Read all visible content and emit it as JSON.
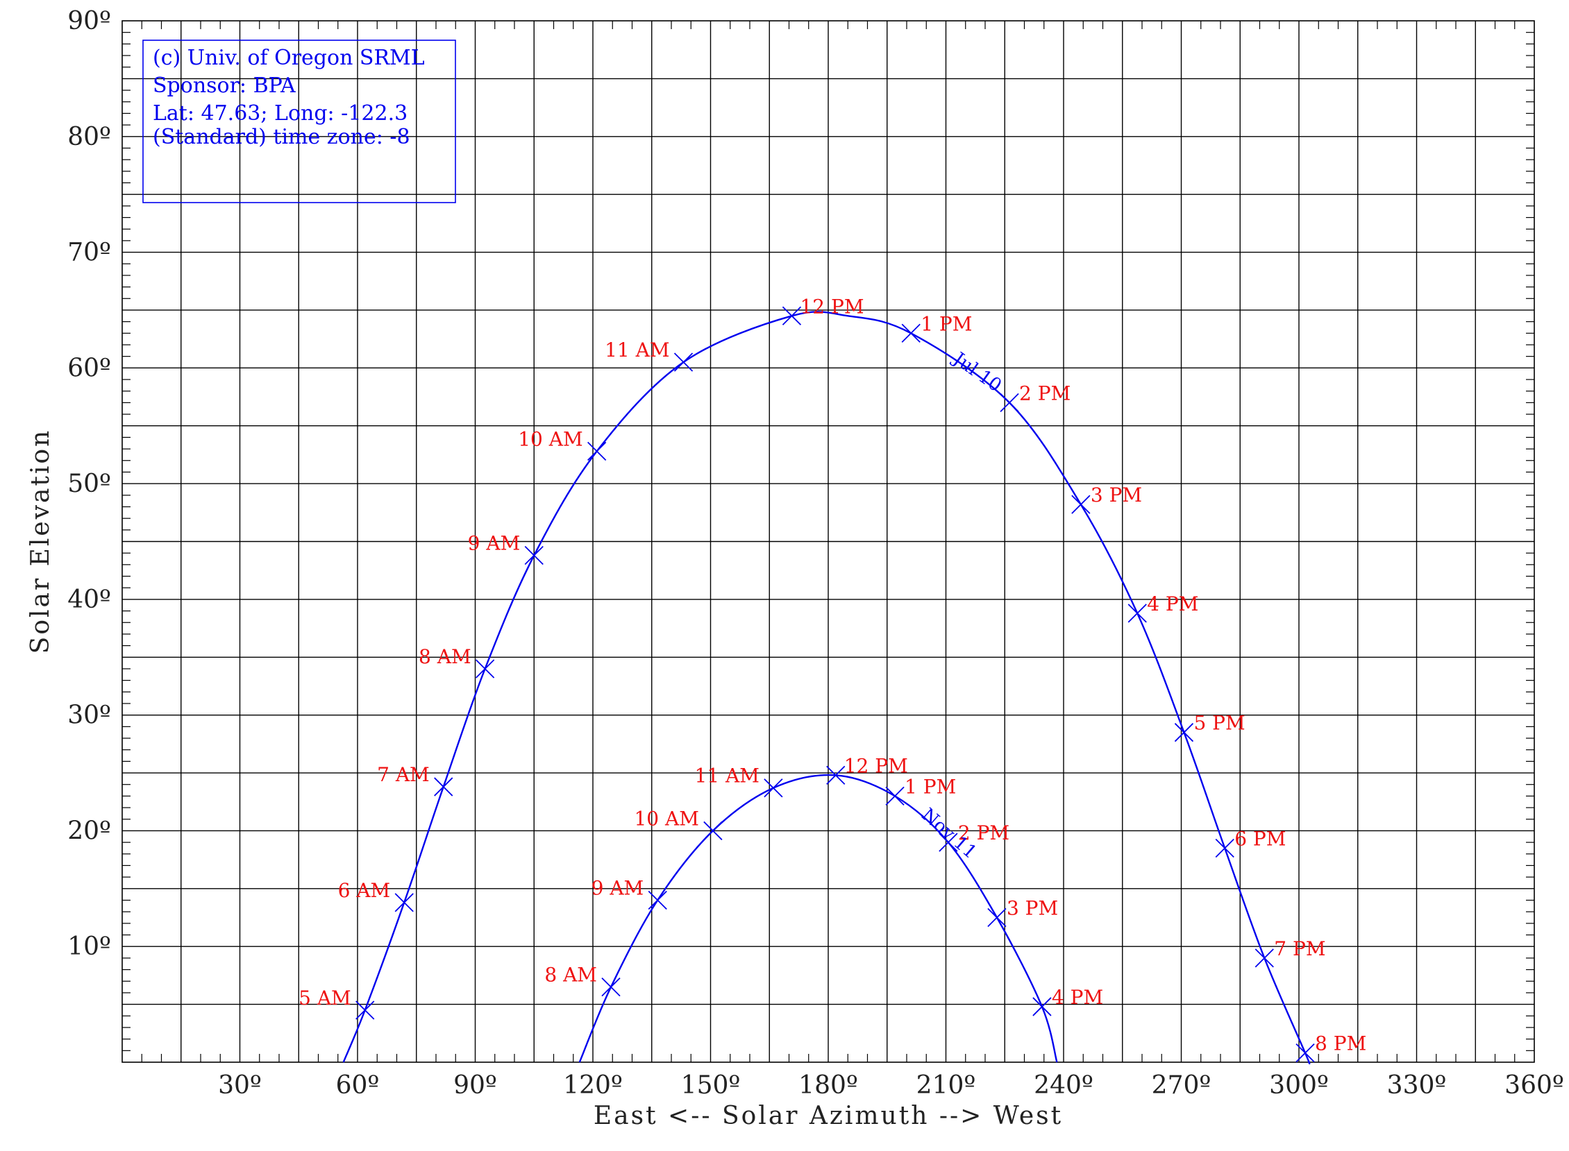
{
  "chart_data": {
    "type": "line",
    "xlabel": "East <-- Solar Azimuth --> West",
    "ylabel": "Solar Elevation",
    "xlim": [
      0,
      360
    ],
    "ylim": [
      0,
      90
    ],
    "x_ticks": [
      30,
      60,
      90,
      120,
      150,
      180,
      210,
      240,
      270,
      300,
      330,
      360
    ],
    "x_tick_labels": [
      "30º",
      "60º",
      "90º",
      "120º",
      "150º",
      "180º",
      "210º",
      "240º",
      "270º",
      "300º",
      "330º",
      "360º"
    ],
    "y_ticks": [
      10,
      20,
      30,
      40,
      50,
      60,
      70,
      80,
      90
    ],
    "y_tick_labels": [
      "10º",
      "20º",
      "30º",
      "40º",
      "50º",
      "60º",
      "70º",
      "80º",
      "90º"
    ],
    "grid": true,
    "info_box": [
      "(c) Univ. of Oregon SRML",
      "Sponsor: BPA",
      "Lat: 47.63; Long: -122.3",
      "(Standard) time zone: -8"
    ],
    "series": [
      {
        "name": "Jul 10",
        "color": "#0000ee",
        "points": [
          {
            "time": "5 AM",
            "azimuth": 61.9,
            "elevation": 4.5
          },
          {
            "time": "6 AM",
            "azimuth": 71.9,
            "elevation": 13.8
          },
          {
            "time": "7 AM",
            "azimuth": 81.9,
            "elevation": 23.8
          },
          {
            "time": "8 AM",
            "azimuth": 92.5,
            "elevation": 34.0
          },
          {
            "time": "9 AM",
            "azimuth": 105.0,
            "elevation": 43.8
          },
          {
            "time": "10 AM",
            "azimuth": 121.0,
            "elevation": 52.8
          },
          {
            "time": "11 AM",
            "azimuth": 143.1,
            "elevation": 60.5
          },
          {
            "time": "12 PM",
            "azimuth": 170.7,
            "elevation": 64.5
          },
          {
            "time": "1 PM",
            "azimuth": 201.1,
            "elevation": 63.0
          },
          {
            "time": "2 PM",
            "azimuth": 226.2,
            "elevation": 57.0
          },
          {
            "time": "3 PM",
            "azimuth": 244.4,
            "elevation": 48.2
          },
          {
            "time": "4 PM",
            "azimuth": 258.8,
            "elevation": 38.8
          },
          {
            "time": "5 PM",
            "azimuth": 270.7,
            "elevation": 28.5
          },
          {
            "time": "6 PM",
            "azimuth": 281.1,
            "elevation": 18.5
          },
          {
            "time": "7 PM",
            "azimuth": 291.2,
            "elevation": 9.0
          },
          {
            "time": "8 PM",
            "azimuth": 301.6,
            "elevation": 0.8
          }
        ],
        "curve": [
          [
            56.4,
            0
          ],
          [
            61.9,
            4.5
          ],
          [
            71.9,
            13.8
          ],
          [
            81.9,
            23.8
          ],
          [
            92.5,
            34.0
          ],
          [
            105.0,
            43.8
          ],
          [
            121.0,
            52.8
          ],
          [
            143.1,
            60.5
          ],
          [
            170.7,
            64.5
          ],
          [
            185.0,
            64.5
          ],
          [
            201.1,
            63.0
          ],
          [
            226.2,
            57.0
          ],
          [
            244.4,
            48.2
          ],
          [
            258.8,
            38.8
          ],
          [
            270.7,
            28.5
          ],
          [
            281.1,
            18.5
          ],
          [
            291.2,
            9.0
          ],
          [
            301.6,
            0.8
          ],
          [
            302.5,
            0
          ]
        ]
      },
      {
        "name": "Nov 11",
        "color": "#0000ee",
        "points": [
          {
            "time": "8 AM",
            "azimuth": 124.6,
            "elevation": 6.5
          },
          {
            "time": "9 AM",
            "azimuth": 136.5,
            "elevation": 14.0
          },
          {
            "time": "10 AM",
            "azimuth": 150.6,
            "elevation": 20.0
          },
          {
            "time": "11 AM",
            "azimuth": 166.0,
            "elevation": 23.7
          },
          {
            "time": "12 PM",
            "azimuth": 181.9,
            "elevation": 24.8
          },
          {
            "time": "1 PM",
            "azimuth": 197.0,
            "elevation": 23.0
          },
          {
            "time": "2 PM",
            "azimuth": 210.6,
            "elevation": 19.0
          },
          {
            "time": "3 PM",
            "azimuth": 223.0,
            "elevation": 12.5
          },
          {
            "time": "4 PM",
            "azimuth": 234.5,
            "elevation": 4.8
          }
        ],
        "curve": [
          [
            116.6,
            0
          ],
          [
            124.6,
            6.5
          ],
          [
            136.5,
            14.0
          ],
          [
            150.6,
            20.0
          ],
          [
            166.0,
            23.7
          ],
          [
            181.9,
            24.8
          ],
          [
            197.0,
            23.0
          ],
          [
            210.6,
            19.0
          ],
          [
            223.0,
            12.5
          ],
          [
            234.5,
            4.8
          ],
          [
            238.3,
            0
          ]
        ]
      }
    ]
  }
}
